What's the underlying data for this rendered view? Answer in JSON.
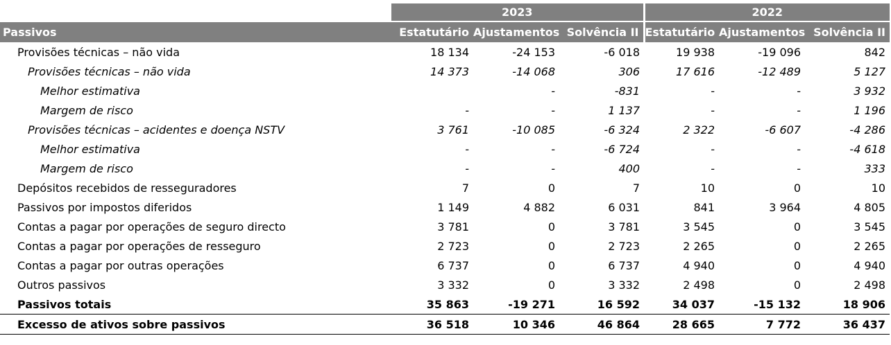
{
  "years": [
    "2023",
    "2022"
  ],
  "header": {
    "row_label": "Passivos",
    "columns": [
      "Estatutário",
      "Ajustamentos",
      "Solvência II",
      "Estatutário",
      "Ajustamentos",
      "Solvência II"
    ]
  },
  "rows": [
    {
      "label": "Provisões técnicas – não vida",
      "values": [
        "18 134",
        "-24 153",
        "-6 018",
        "19 938",
        "-19 096",
        "842"
      ],
      "level": 0,
      "style": "normal"
    },
    {
      "label": "Provisões técnicas – não vida",
      "values": [
        "14 373",
        "-14 068",
        "306",
        "17 616",
        "-12 489",
        "5 127"
      ],
      "level": 1,
      "style": "italic"
    },
    {
      "label": "Melhor estimativa",
      "values": [
        "",
        "-",
        "-831",
        "-",
        "-",
        "3 932"
      ],
      "level": 2,
      "style": "italic"
    },
    {
      "label": "Margem de risco",
      "values": [
        "-",
        "-",
        "1 137",
        "-",
        "-",
        "1 196"
      ],
      "level": 2,
      "style": "italic"
    },
    {
      "label": "Provisões técnicas – acidentes e doença NSTV",
      "values": [
        "3 761",
        "-10 085",
        "-6 324",
        "2 322",
        "-6 607",
        "-4 286"
      ],
      "level": 1,
      "style": "italic"
    },
    {
      "label": "Melhor estimativa",
      "values": [
        "-",
        "-",
        "-6 724",
        "-",
        "-",
        "-4 618"
      ],
      "level": 2,
      "style": "italic"
    },
    {
      "label": "Margem de risco",
      "values": [
        "-",
        "-",
        "400",
        "-",
        "-",
        "333"
      ],
      "level": 2,
      "style": "italic"
    },
    {
      "label": "Depósitos recebidos de resseguradores",
      "values": [
        "7",
        "0",
        "7",
        "10",
        "0",
        "10"
      ],
      "level": 0,
      "style": "normal"
    },
    {
      "label": "Passivos por impostos diferidos",
      "values": [
        "1 149",
        "4 882",
        "6 031",
        "841",
        "3 964",
        "4 805"
      ],
      "level": 0,
      "style": "normal"
    },
    {
      "label": "Contas a pagar por operações de seguro directo",
      "values": [
        "3 781",
        "0",
        "3 781",
        "3 545",
        "0",
        "3 545"
      ],
      "level": 0,
      "style": "normal"
    },
    {
      "label": "Contas a pagar por operações de resseguro",
      "values": [
        "2 723",
        "0",
        "2 723",
        "2 265",
        "0",
        "2 265"
      ],
      "level": 0,
      "style": "normal"
    },
    {
      "label": "Contas a pagar por outras operações",
      "values": [
        "6 737",
        "0",
        "6 737",
        "4 940",
        "0",
        "4 940"
      ],
      "level": 0,
      "style": "normal"
    },
    {
      "label": "Outros passivos",
      "values": [
        "3 332",
        "0",
        "3 332",
        "2 498",
        "0",
        "2 498"
      ],
      "level": 0,
      "style": "normal"
    },
    {
      "label": "Passivos totais",
      "values": [
        "35 863",
        "-19 271",
        "16 592",
        "34 037",
        "-15 132",
        "18 906"
      ],
      "level": 0,
      "style": "bold"
    },
    {
      "label": "Excesso de ativos sobre passivos",
      "values": [
        "36 518",
        "10 346",
        "46 864",
        "28 665",
        "7 772",
        "36 437"
      ],
      "level": 0,
      "style": "bold-ruled"
    }
  ]
}
